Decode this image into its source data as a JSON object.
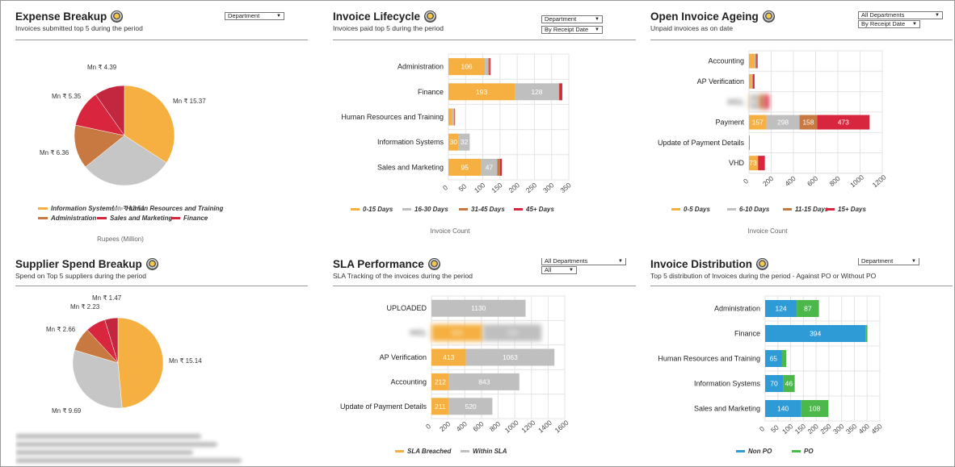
{
  "colors": {
    "c0_15": "#F5B041",
    "c16_30": "#BFBFBF",
    "c31_45": "#C87941",
    "c45p": "#D9263F",
    "c_finance": "#D9263F",
    "c_sales": "#D9263F",
    "non_po": "#2E9BD6",
    "po": "#4CB84C"
  },
  "expense": {
    "title": "Expense Breakup",
    "subtitle": "Invoices submitted top 5 during the period",
    "dropdown": "Department",
    "axis_label": "Rupees (Million)",
    "slices": [
      {
        "label": "Mn ₹ 15.37",
        "value": 15.37,
        "color": "#F5B041"
      },
      {
        "label": "Mn ₹ 13.51",
        "value": 13.51,
        "color": "#C6C6C6"
      },
      {
        "label": "Mn ₹ 6.36",
        "value": 6.36,
        "color": "#C87941"
      },
      {
        "label": "Mn ₹ 5.35",
        "value": 5.35,
        "color": "#D9263F"
      },
      {
        "label": "Mn ₹ 4.39",
        "value": 4.39,
        "color": "#C2273F"
      }
    ],
    "legend": [
      {
        "name": "Information Systems",
        "color": "#F5B041"
      },
      {
        "name": "Human Resources and Training",
        "color": "#BFBFBF"
      },
      {
        "name": "Administration",
        "color": "#C87941"
      },
      {
        "name": "Sales and Marketing",
        "color": "#D9263F"
      },
      {
        "name": "Finance",
        "color": "#D9263F"
      }
    ]
  },
  "lifecycle": {
    "title": "Invoice Lifecycle",
    "subtitle": "Invoices paid top 5 during the period",
    "dropdown1": "Department",
    "dropdown2": "By Receipt Date",
    "axis_label": "Invoice Count",
    "ticks": [
      "0",
      "50",
      "100",
      "150",
      "200",
      "250",
      "300",
      "350"
    ],
    "legend": [
      "0-15 Days",
      "16-30 Days",
      "31-45 Days",
      "45+ Days"
    ]
  },
  "ageing": {
    "title": "Open Invoice Ageing",
    "subtitle": "Unpaid invoices as on date",
    "dropdown1": "All Departments",
    "dropdown2": "By Receipt Date",
    "axis_label": "Invoice Count",
    "ticks": [
      "0",
      "200",
      "400",
      "600",
      "800",
      "1000",
      "1200"
    ],
    "legend": [
      "0-5 Days",
      "6-10 Days",
      "11-15 Days",
      "15+ Days"
    ]
  },
  "supplier": {
    "title": "Supplier Spend Breakup",
    "subtitle": "Spend on Top 5 suppliers during the period",
    "slices": [
      {
        "label": "Mn ₹ 15.14",
        "value": 15.14,
        "color": "#F5B041"
      },
      {
        "label": "Mn ₹ 9.69",
        "value": 9.69,
        "color": "#C6C6C6"
      },
      {
        "label": "Mn ₹ 2.66",
        "value": 2.66,
        "color": "#C87941"
      },
      {
        "label": "Mn ₹ 2.23",
        "value": 2.23,
        "color": "#D9263F"
      },
      {
        "label": "Mn ₹ 1.47",
        "value": 1.47,
        "color": "#C2273F"
      }
    ]
  },
  "sla": {
    "title": "SLA Performance",
    "subtitle": "SLA Tracking of the invoices during the period",
    "dropdown1": "All Departments",
    "dropdown2": "All",
    "ticks": [
      "0",
      "200",
      "400",
      "600",
      "800",
      "1000",
      "1200",
      "1400",
      "1600"
    ],
    "legend": [
      "SLA Breached",
      "Within SLA"
    ]
  },
  "distribution": {
    "title": "Invoice Distribution",
    "subtitle": "Top 5 distribution of Invoices during the period - Against PO or Without PO",
    "dropdown": "Department",
    "ticks": [
      "0",
      "50",
      "100",
      "150",
      "200",
      "250",
      "300",
      "350",
      "400",
      "450"
    ],
    "legend": [
      "Non PO",
      "PO"
    ]
  },
  "chart_data": [
    {
      "type": "pie",
      "title": "Expense Breakup",
      "labels": [
        "Information Systems",
        "Human Resources and Training",
        "Administration",
        "Sales and Marketing",
        "Finance"
      ],
      "values": [
        15.37,
        13.51,
        6.36,
        5.35,
        4.39
      ],
      "xlabel": "Rupees (Million)"
    },
    {
      "type": "bar",
      "orientation": "horizontal",
      "stacked": true,
      "title": "Invoice Lifecycle",
      "categories": [
        "Administration",
        "Finance",
        "Human Resources and Training",
        "Information Systems",
        "Sales and Marketing"
      ],
      "series": [
        {
          "name": "0-15 Days",
          "values": [
            106,
            193,
            11,
            30,
            95
          ]
        },
        {
          "name": "16-30 Days",
          "values": [
            10,
            128,
            5,
            32,
            47
          ]
        },
        {
          "name": "31-45 Days",
          "values": [
            3,
            2,
            2,
            0,
            8
          ]
        },
        {
          "name": "45+ Days",
          "values": [
            3,
            8,
            1,
            0,
            5
          ]
        }
      ],
      "xlabel": "Invoice Count",
      "xlim": [
        0,
        350
      ]
    },
    {
      "type": "bar",
      "orientation": "horizontal",
      "stacked": true,
      "title": "Open Invoice Ageing",
      "categories": [
        "Accounting",
        "AP Verification",
        "IHCL",
        "Payment",
        "Update of Payment Details",
        "VHD"
      ],
      "series": [
        {
          "name": "0-5 Days",
          "values": [
            53,
            25,
            10,
            157,
            2,
            73
          ]
        },
        {
          "name": "6-10 Days",
          "values": [
            5,
            5,
            80,
            298,
            0,
            5
          ]
        },
        {
          "name": "11-15 Days",
          "values": [
            10,
            5,
            50,
            158,
            0,
            5
          ]
        },
        {
          "name": "15+ Days",
          "values": [
            10,
            15,
            40,
            473,
            2,
            60
          ]
        }
      ],
      "xlabel": "Invoice Count",
      "xlim": [
        0,
        1200
      ]
    },
    {
      "type": "pie",
      "title": "Supplier Spend Breakup",
      "labels": [
        "Mn ₹ 15.14",
        "Mn ₹ 9.69",
        "Mn ₹ 2.66",
        "Mn ₹ 2.23",
        "Mn ₹ 1.47"
      ],
      "values": [
        15.14,
        9.69,
        2.66,
        2.23,
        1.47
      ]
    },
    {
      "type": "bar",
      "orientation": "horizontal",
      "stacked": true,
      "title": "SLA Performance",
      "categories": [
        "UPLOADED",
        "IHCL",
        "AP Verification",
        "Accounting",
        "Update of Payment Details"
      ],
      "series": [
        {
          "name": "SLA Breached",
          "values": [
            0,
            620,
            413,
            212,
            211
          ]
        },
        {
          "name": "Within SLA",
          "values": [
            1130,
            700,
            1063,
            843,
            520
          ]
        }
      ],
      "xlim": [
        0,
        1600
      ]
    },
    {
      "type": "bar",
      "orientation": "horizontal",
      "stacked": true,
      "title": "Invoice Distribution",
      "categories": [
        "Administration",
        "Finance",
        "Human Resources and Training",
        "Information Systems",
        "Sales and Marketing"
      ],
      "series": [
        {
          "name": "Non PO",
          "values": [
            124,
            394,
            65,
            70,
            140
          ]
        },
        {
          "name": "PO",
          "values": [
            87,
            7,
            18,
            46,
            108
          ]
        }
      ],
      "xlim": [
        0,
        450
      ]
    }
  ]
}
